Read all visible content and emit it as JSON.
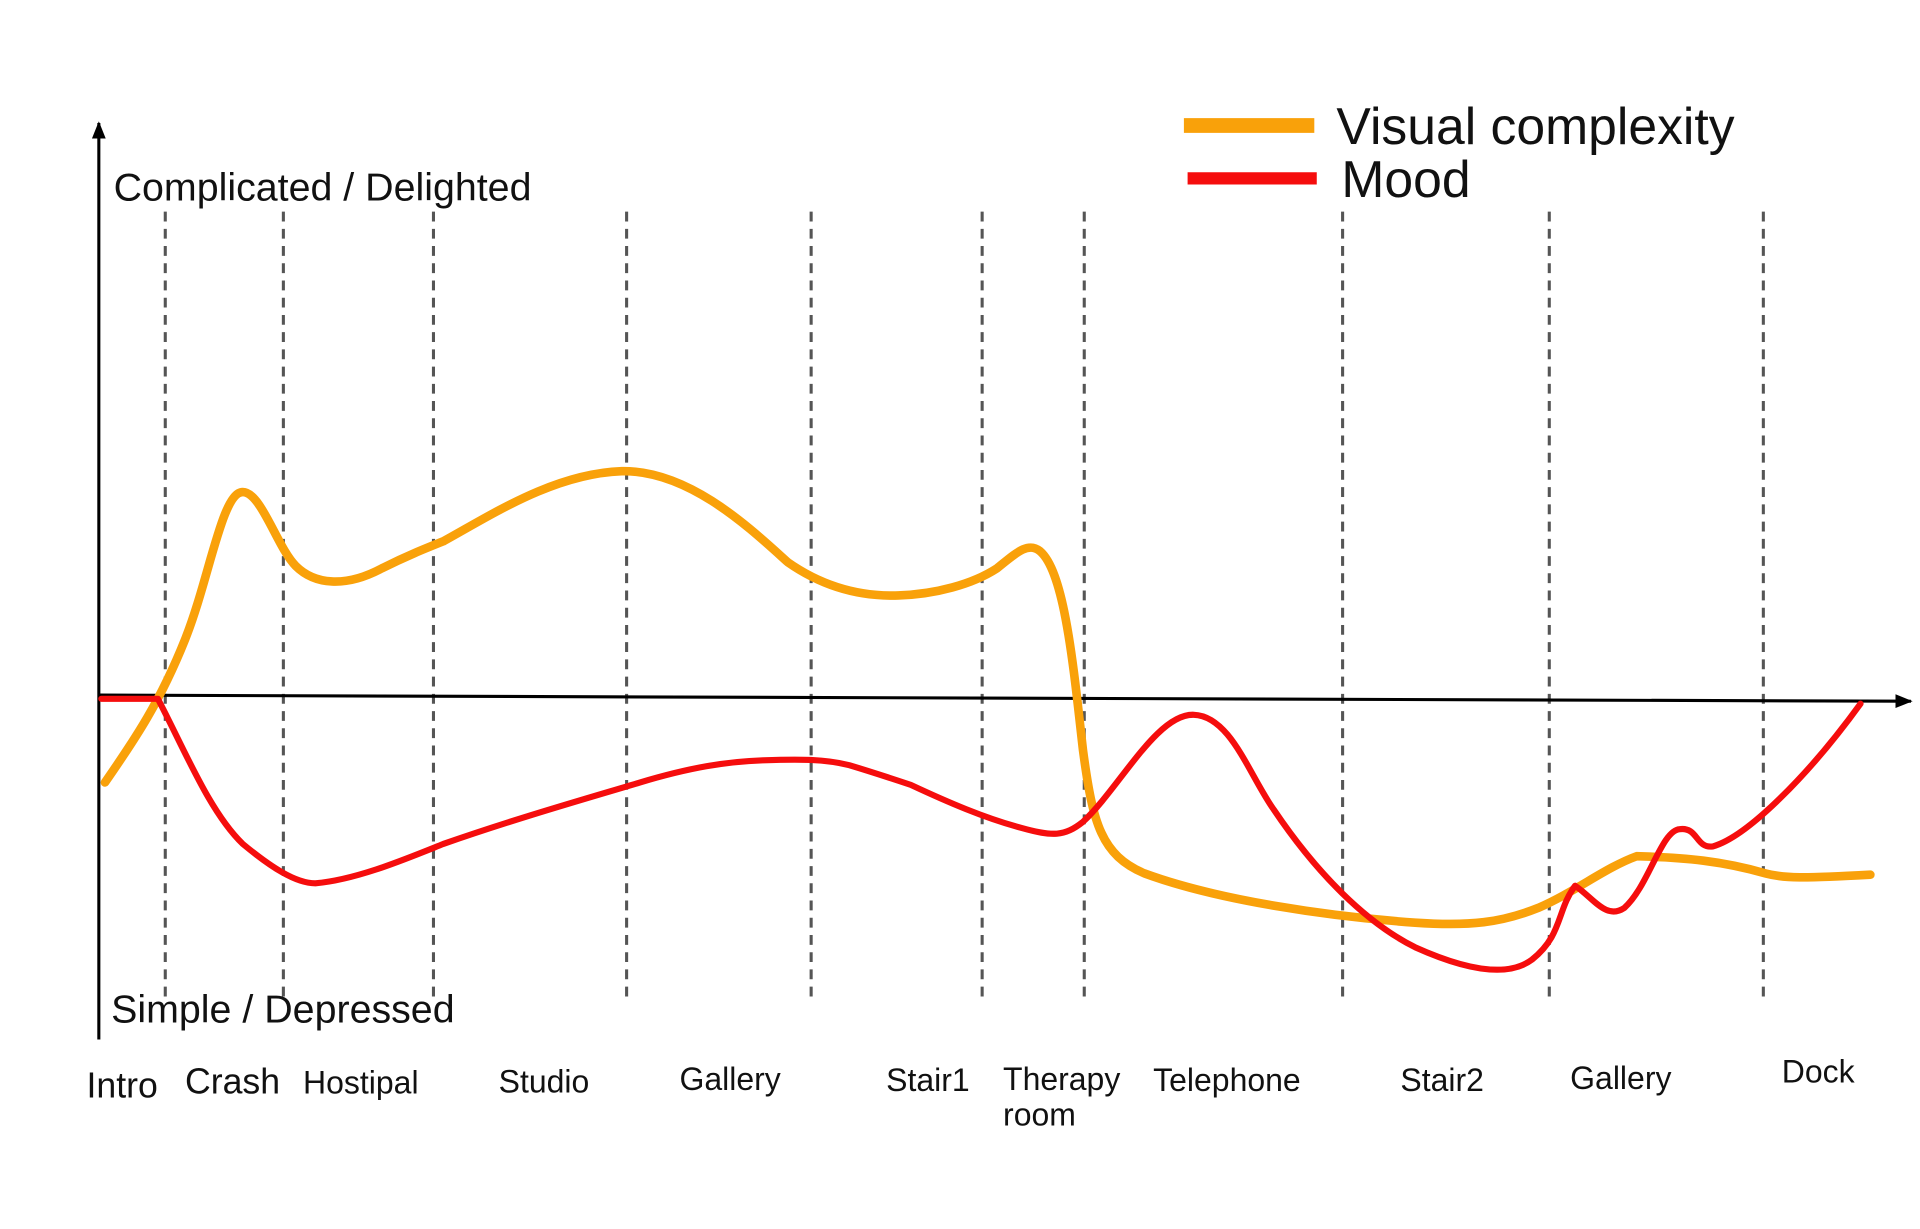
{
  "legend": [
    "Visual complexity",
    "Mood"
  ],
  "y_axis": {
    "top": "Complicated / Delighted",
    "bottom": "Simple / Depressed"
  },
  "scenes": [
    [
      "Intro"
    ],
    [
      "Crash"
    ],
    [
      "Hostipal"
    ],
    [
      "Studio"
    ],
    [
      "Gallery"
    ],
    [
      "Stair1"
    ],
    [
      "Therapy",
      "room"
    ],
    [
      "Telephone"
    ],
    [
      "Stair2"
    ],
    [
      "Gallery"
    ],
    [
      "Dock"
    ]
  ]
}
